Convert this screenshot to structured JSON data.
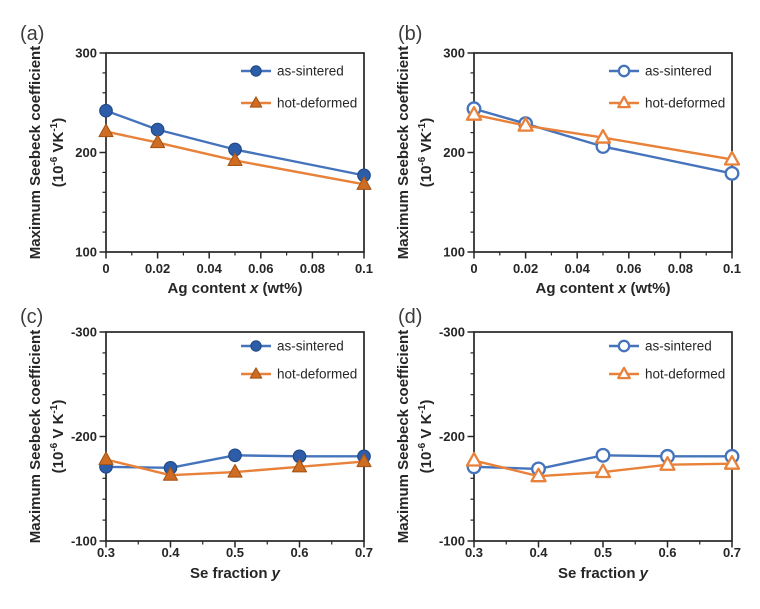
{
  "figure": {
    "background": "#ffffff",
    "colors": {
      "axis": "#262626",
      "tick_text": "#262626",
      "letter_text": "#3c3c3c",
      "legend_text": "#262626",
      "blue_line": "#4674BC",
      "blue_marker_fill": "#2D5DA9",
      "blue_marker_edge": "#1F4884",
      "orange_line": "#E8813A",
      "orange_marker_fill": "#CE6C24",
      "orange_marker_edge": "#A85415",
      "open_marker_fill": "#ffffff"
    }
  },
  "chart_data": [
    {
      "type": "line",
      "panel_label": "(a)",
      "ylabel_line1": "Maximum Seebeck coefficient",
      "ylabel_line2_parts": [
        {
          "t": "(10"
        },
        {
          "t": "-6",
          "sup": true
        },
        {
          "t": " VK"
        },
        {
          "t": "-1",
          "sup": true
        },
        {
          "t": ")"
        }
      ],
      "xlabel_parts": [
        {
          "t": "Ag content "
        },
        {
          "t": "x",
          "italic": true
        },
        {
          "t": " (wt%)"
        }
      ],
      "xlim": [
        0,
        0.1
      ],
      "ylim_top": 300,
      "ylim_bottom": 100,
      "yticks": [
        {
          "v": 300,
          "label": "300"
        },
        {
          "v": 200,
          "label": "200"
        },
        {
          "v": 100,
          "label": "100"
        }
      ],
      "xticks": [
        {
          "v": 0,
          "label": "0"
        },
        {
          "v": 0.02,
          "label": "0.02"
        },
        {
          "v": 0.04,
          "label": "0.04"
        },
        {
          "v": 0.06,
          "label": "0.06"
        },
        {
          "v": 0.08,
          "label": "0.08"
        },
        {
          "v": 0.1,
          "label": "0.1"
        }
      ],
      "y_minor": [
        120,
        140,
        160,
        180,
        220,
        240,
        260,
        280
      ],
      "x_minor": [
        0.01,
        0.03,
        0.05,
        0.07,
        0.09
      ],
      "x": [
        0,
        0.02,
        0.05,
        0.1
      ],
      "series": [
        {
          "name": "as-sintered",
          "color": "blue",
          "marker": "circle",
          "style": "filled",
          "values": [
            242,
            223,
            203,
            177
          ]
        },
        {
          "name": "hot-deformed",
          "color": "orange",
          "marker": "triangle",
          "style": "filled",
          "values": [
            221,
            210,
            192,
            168
          ]
        }
      ],
      "legend": [
        "as-sintered",
        "hot-deformed"
      ],
      "legend_position": "top-right",
      "grid": false
    },
    {
      "type": "line",
      "panel_label": "(b)",
      "ylabel_line1": "Maximum Seebeck coefficient",
      "ylabel_line2_parts": [
        {
          "t": "(10"
        },
        {
          "t": "-6",
          "sup": true
        },
        {
          "t": " VK"
        },
        {
          "t": "-1",
          "sup": true
        },
        {
          "t": ")"
        }
      ],
      "xlabel_parts": [
        {
          "t": "Ag content "
        },
        {
          "t": "x",
          "italic": true
        },
        {
          "t": " (wt%)"
        }
      ],
      "xlim": [
        0,
        0.1
      ],
      "ylim_top": 300,
      "ylim_bottom": 100,
      "yticks": [
        {
          "v": 300,
          "label": "300"
        },
        {
          "v": 200,
          "label": "200"
        },
        {
          "v": 100,
          "label": "100"
        }
      ],
      "xticks": [
        {
          "v": 0,
          "label": "0"
        },
        {
          "v": 0.02,
          "label": "0.02"
        },
        {
          "v": 0.04,
          "label": "0.04"
        },
        {
          "v": 0.06,
          "label": "0.06"
        },
        {
          "v": 0.08,
          "label": "0.08"
        },
        {
          "v": 0.1,
          "label": "0.1"
        }
      ],
      "y_minor": [
        120,
        140,
        160,
        180,
        220,
        240,
        260,
        280
      ],
      "x_minor": [
        0.01,
        0.03,
        0.05,
        0.07,
        0.09
      ],
      "x": [
        0,
        0.02,
        0.05,
        0.1
      ],
      "series": [
        {
          "name": "as-sintered",
          "color": "blue",
          "marker": "circle",
          "style": "open",
          "values": [
            244,
            229,
            206,
            179
          ]
        },
        {
          "name": "hot-deformed",
          "color": "orange",
          "marker": "triangle",
          "style": "open",
          "values": [
            238,
            227,
            215,
            193
          ]
        }
      ],
      "legend": [
        "as-sintered",
        "hot-deformed"
      ],
      "legend_position": "top-right",
      "grid": false
    },
    {
      "type": "line",
      "panel_label": "(c)",
      "ylabel_line1": "Maximum Seebeck coefficient",
      "ylabel_line2_parts": [
        {
          "t": "(10"
        },
        {
          "t": "-6",
          "sup": true
        },
        {
          "t": " V K"
        },
        {
          "t": "-1",
          "sup": true
        },
        {
          "t": ")"
        }
      ],
      "xlabel_parts": [
        {
          "t": "Se fraction "
        },
        {
          "t": "y",
          "italic": true
        }
      ],
      "xlim": [
        0.3,
        0.7
      ],
      "ylim_top": -300,
      "ylim_bottom": -100,
      "yticks": [
        {
          "v": -300,
          "label": "-300"
        },
        {
          "v": -200,
          "label": "-200"
        },
        {
          "v": -100,
          "label": "-100"
        }
      ],
      "xticks": [
        {
          "v": 0.3,
          "label": "0.3"
        },
        {
          "v": 0.4,
          "label": "0.4"
        },
        {
          "v": 0.5,
          "label": "0.5"
        },
        {
          "v": 0.6,
          "label": "0.6"
        },
        {
          "v": 0.7,
          "label": "0.7"
        }
      ],
      "y_minor": [
        -280,
        -260,
        -240,
        -220,
        -180,
        -160,
        -140,
        -120
      ],
      "x_minor": [
        0.35,
        0.45,
        0.55,
        0.65
      ],
      "x": [
        0.3,
        0.4,
        0.5,
        0.6,
        0.7
      ],
      "series": [
        {
          "name": "as-sintered",
          "color": "blue",
          "marker": "circle",
          "style": "filled",
          "values": [
            -171,
            -170,
            -182,
            -181,
            -181
          ]
        },
        {
          "name": "hot-deformed",
          "color": "orange",
          "marker": "triangle",
          "style": "filled",
          "values": [
            -178,
            -163,
            -166,
            -171,
            -176
          ]
        }
      ],
      "legend": [
        "as-sintered",
        "hot-deformed"
      ],
      "legend_position": "top-right",
      "grid": false
    },
    {
      "type": "line",
      "panel_label": "(d)",
      "ylabel_line1": "Maximum Seebeck coefficient",
      "ylabel_line2_parts": [
        {
          "t": "(10"
        },
        {
          "t": "-6",
          "sup": true
        },
        {
          "t": " V K"
        },
        {
          "t": "-1",
          "sup": true
        },
        {
          "t": ")"
        }
      ],
      "xlabel_parts": [
        {
          "t": "Se fraction "
        },
        {
          "t": "y",
          "italic": true
        }
      ],
      "xlim": [
        0.3,
        0.7
      ],
      "ylim_top": -300,
      "ylim_bottom": -100,
      "yticks": [
        {
          "v": -300,
          "label": "-300"
        },
        {
          "v": -200,
          "label": "-200"
        },
        {
          "v": -100,
          "label": "-100"
        }
      ],
      "xticks": [
        {
          "v": 0.3,
          "label": "0.3"
        },
        {
          "v": 0.4,
          "label": "0.4"
        },
        {
          "v": 0.5,
          "label": "0.5"
        },
        {
          "v": 0.6,
          "label": "0.6"
        },
        {
          "v": 0.7,
          "label": "0.7"
        }
      ],
      "y_minor": [
        -280,
        -260,
        -240,
        -220,
        -180,
        -160,
        -140,
        -120
      ],
      "x_minor": [
        0.35,
        0.45,
        0.55,
        0.65
      ],
      "x": [
        0.3,
        0.4,
        0.5,
        0.6,
        0.7
      ],
      "series": [
        {
          "name": "as-sintered",
          "color": "blue",
          "marker": "circle",
          "style": "open",
          "values": [
            -171,
            -169,
            -182,
            -181,
            -181
          ]
        },
        {
          "name": "hot-deformed",
          "color": "orange",
          "marker": "triangle",
          "style": "open",
          "values": [
            -177,
            -162,
            -166,
            -173,
            -174
          ]
        }
      ],
      "legend": [
        "as-sintered",
        "hot-deformed"
      ],
      "legend_position": "top-right",
      "grid": false
    }
  ]
}
